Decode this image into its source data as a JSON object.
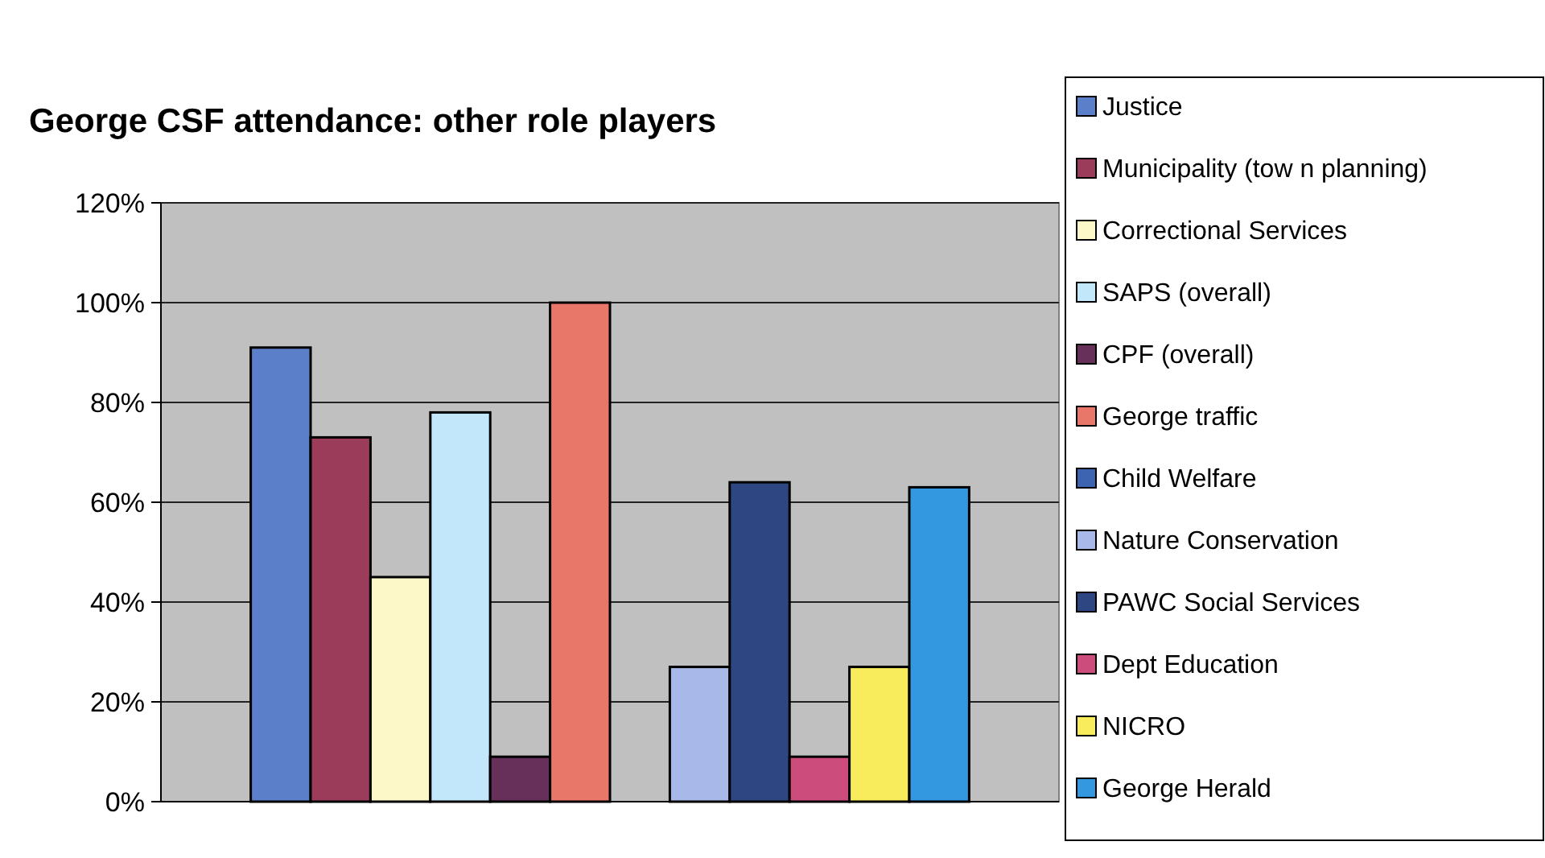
{
  "chart_data": {
    "type": "bar",
    "title": "George CSF attendance: other role players",
    "categories": [
      null
    ],
    "series": [
      {
        "name": "Justice",
        "color": "#5b7fc8",
        "values": [
          91
        ]
      },
      {
        "name": "Municipality (tow n planning)",
        "color": "#9b3c5a",
        "values": [
          73
        ]
      },
      {
        "name": "Correctional Services",
        "color": "#fdf8c8",
        "values": [
          45
        ]
      },
      {
        "name": "SAPS (overall)",
        "color": "#c2e6fa",
        "values": [
          78
        ]
      },
      {
        "name": "CPF (overall)",
        "color": "#66305a",
        "values": [
          9
        ]
      },
      {
        "name": "George traffic",
        "color": "#e8776a",
        "values": [
          100
        ]
      },
      {
        "name": "Child Welfare",
        "color": "#3c64b0",
        "values": [
          0
        ]
      },
      {
        "name": "Nature Conservation",
        "color": "#a8b8e8",
        "values": [
          27
        ]
      },
      {
        "name": "PAWC Social Services",
        "color": "#2e4682",
        "values": [
          64
        ]
      },
      {
        "name": "Dept Education",
        "color": "#cc4c7c",
        "values": [
          9
        ]
      },
      {
        "name": "NICRO",
        "color": "#f8ec5c",
        "values": [
          27
        ]
      },
      {
        "name": "George Herald",
        "color": "#3498e0",
        "values": [
          63
        ]
      }
    ],
    "ylim": [
      0,
      120
    ],
    "yticks": [
      {
        "value": 0,
        "label": "0%"
      },
      {
        "value": 20,
        "label": "20%"
      },
      {
        "value": 40,
        "label": "40%"
      },
      {
        "value": 60,
        "label": "60%"
      },
      {
        "value": 80,
        "label": "80%"
      },
      {
        "value": 100,
        "label": "100%"
      },
      {
        "value": 120,
        "label": "120%"
      }
    ],
    "grid": "y",
    "legend": "right"
  }
}
